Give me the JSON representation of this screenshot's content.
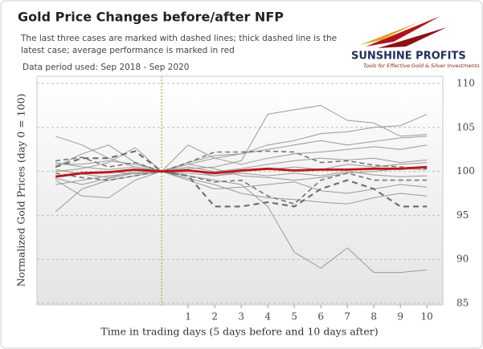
{
  "chart_data": {
    "type": "line",
    "title": "Gold Price Changes before/after NFP",
    "subtitle": [
      "The last three cases are marked with dashed lines; thick dashed line is the",
      "latest case; average performance is marked in red"
    ],
    "note": "Data period used: Sep 2018 - Sep 2020",
    "x_label": "Time in trading days (5 days before and 10 days after)",
    "y_label": "Normalized Gold Prices (day 0 = 100)",
    "x": [
      -4,
      -3,
      -2,
      -1,
      0,
      1,
      2,
      3,
      4,
      5,
      6,
      7,
      8,
      9,
      10
    ],
    "xlim": [
      -4.7,
      10.6
    ],
    "xticks": [
      1,
      2,
      3,
      4,
      5,
      6,
      7,
      8,
      9,
      10
    ],
    "ylim": [
      85,
      110
    ],
    "yticks": [
      85,
      90,
      95,
      100,
      105,
      110
    ],
    "y_axis_side": "right",
    "grid": true,
    "vline": 0,
    "series": [
      {
        "color": "#9a9a9a",
        "style": "solid",
        "values": [
          95.4,
          98,
          99,
          99.5,
          100,
          100.3,
          100.5,
          101.2,
          106.5,
          107,
          107.5,
          105.8,
          105.5,
          104,
          104.2
        ]
      },
      {
        "color": "#9a9a9a",
        "style": "solid",
        "values": [
          104,
          103,
          101.5,
          100.5,
          100,
          99.5,
          99,
          98.5,
          96,
          90.8,
          89,
          91.3,
          88.5,
          88.5,
          88.8
        ]
      },
      {
        "color": "#9a9a9a",
        "style": "solid",
        "values": [
          100.5,
          102,
          103,
          101,
          100,
          103,
          101.5,
          102,
          103,
          103.5,
          104.3,
          104.5,
          105,
          105.2,
          106.5
        ]
      },
      {
        "color": "#9a9a9a",
        "style": "solid",
        "values": [
          99,
          97.2,
          97,
          99,
          100,
          99.2,
          98.5,
          97.5,
          97,
          96.8,
          96.5,
          96.3,
          97,
          97.5,
          97.2
        ]
      },
      {
        "color": "#9a9a9a",
        "style": "solid",
        "values": [
          100,
          100.3,
          101,
          102.7,
          100,
          101,
          101.8,
          102,
          102.5,
          103,
          103.5,
          103,
          103.4,
          103.8,
          104
        ]
      },
      {
        "color": "#9a9a9a",
        "style": "solid",
        "values": [
          98.5,
          99,
          99.5,
          99.8,
          100,
          99,
          98,
          98.2,
          98.5,
          98.8,
          97.8,
          97.5,
          98,
          98.5,
          98.2
        ]
      },
      {
        "color": "#9a9a9a",
        "style": "solid",
        "values": [
          101,
          100.5,
          100.2,
          100.5,
          100,
          100.5,
          100,
          100.3,
          100.8,
          101.2,
          101.5,
          101.3,
          101.5,
          101,
          101.3
        ]
      },
      {
        "color": "#9a9a9a",
        "style": "solid",
        "values": [
          99.5,
          99.8,
          100,
          99.7,
          100,
          100.2,
          99.5,
          99.8,
          99.5,
          99.8,
          99.5,
          100,
          99.6,
          99.4,
          99.5
        ]
      },
      {
        "color": "#9a9a9a",
        "style": "solid",
        "values": [
          100.8,
          100.8,
          101.2,
          100.8,
          100,
          100.8,
          101.5,
          100.8,
          101.5,
          102,
          102.2,
          102.5,
          102.8,
          102.5,
          103
        ]
      },
      {
        "color": "#9a9a9a",
        "style": "solid",
        "values": [
          99.2,
          98.5,
          99.2,
          99.8,
          100,
          99.8,
          99.5,
          100,
          100.2,
          100.5,
          100.2,
          100.8,
          100.5,
          100.8,
          101
        ]
      },
      {
        "color": "#9a9a9a",
        "style": "solid",
        "values": [
          100.2,
          99.7,
          99.3,
          100,
          100,
          100.8,
          100.3,
          99.5,
          99.3,
          99,
          99.3,
          99.8,
          100,
          100.3,
          100.2
        ]
      },
      {
        "color": "#777777",
        "style": "dashed",
        "values": [
          101.2,
          101.6,
          100.5,
          101,
          100,
          101,
          102.2,
          102.2,
          102.3,
          102.2,
          101,
          101.2,
          100.7,
          100.5,
          100.3
        ]
      },
      {
        "color": "#777777",
        "style": "dashed",
        "values": [
          99.8,
          99.3,
          99,
          99.5,
          100,
          99.5,
          98.8,
          99,
          97.2,
          96.3,
          99,
          99.8,
          99,
          99,
          99
        ]
      },
      {
        "color": "#707070",
        "style": "dashed-thick",
        "values": [
          100.5,
          101.5,
          101.5,
          102.3,
          100,
          99.5,
          96,
          96,
          96.5,
          96,
          98,
          99,
          98,
          96,
          96
        ]
      },
      {
        "color": "#c0161a",
        "style": "thick",
        "values": [
          99.4,
          99.8,
          99.9,
          100.2,
          100,
          100.1,
          99.8,
          100.1,
          100.3,
          100.1,
          100.2,
          100.2,
          100.3,
          100.3,
          100.5
        ]
      }
    ]
  },
  "logo": {
    "name": "SUNSHINE PROFITS",
    "tagline": "Tools for Effective Gold & Silver Investments"
  }
}
